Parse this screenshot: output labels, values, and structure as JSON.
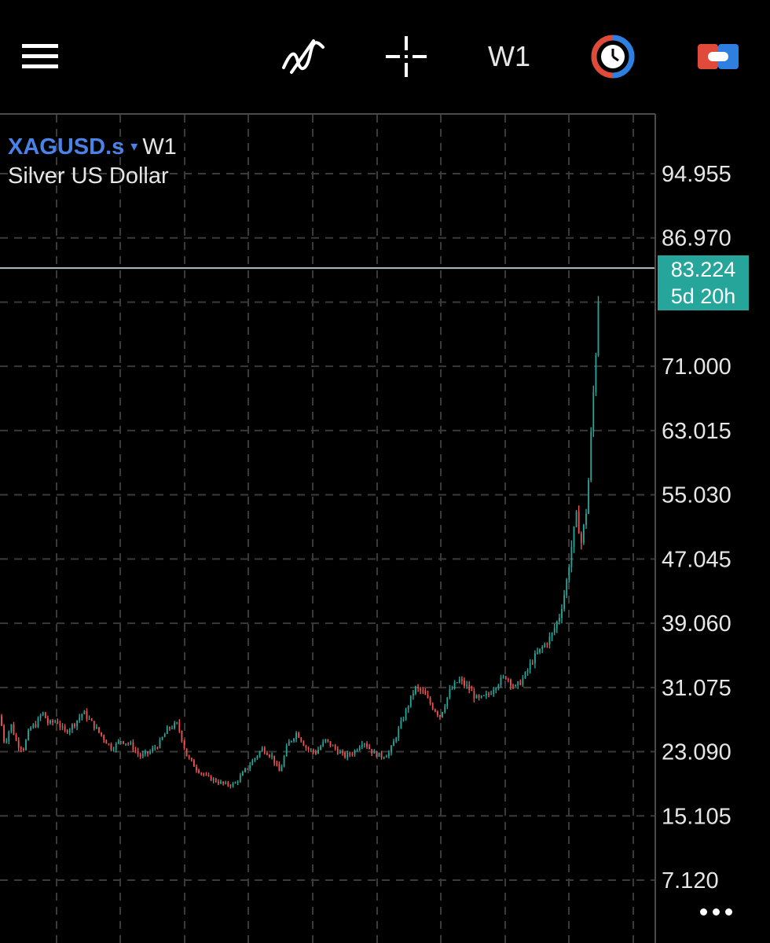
{
  "toolbar": {
    "timeframe": "W1",
    "icons": [
      "menu-icon",
      "indicators-icon",
      "crosshair-icon",
      "timeframe",
      "session-clock-icon",
      "trade-icon"
    ],
    "colors": {
      "clock_red": "#e04a3a",
      "clock_blue": "#2f7fe0",
      "trade_red": "#e04a3a",
      "trade_blue": "#2f7fe0"
    }
  },
  "symbol": {
    "name": "XAGUSD.s",
    "caret": "▾",
    "timeframe": "W1",
    "description": "Silver US Dollar"
  },
  "price_badge": {
    "price": "83.224",
    "countdown": "5d 20h",
    "color": "#26a69a"
  },
  "chart_data": {
    "type": "candlestick",
    "symbol": "XAGUSD.s",
    "timeframe": "W1",
    "y_ticks": [
      "94.955",
      "86.970",
      "71.000",
      "63.015",
      "55.030",
      "47.045",
      "39.060",
      "31.075",
      "23.090",
      "15.105",
      "7.120"
    ],
    "y_tick_values": [
      94.955,
      86.97,
      71.0,
      63.015,
      55.03,
      47.045,
      39.06,
      31.075,
      23.09,
      15.105,
      7.12
    ],
    "current_price": 83.224,
    "grid": true,
    "colors": {
      "up": "#26a69a",
      "down": "#ef5350",
      "grid": "#3a3a3a",
      "price_line": "#b0bec5"
    },
    "approx_path": [
      [
        0,
        27.5
      ],
      [
        6,
        24.0
      ],
      [
        14,
        26.5
      ],
      [
        22,
        24.0
      ],
      [
        30,
        23.5
      ],
      [
        38,
        26.0
      ],
      [
        46,
        26.5
      ],
      [
        54,
        28.0
      ],
      [
        62,
        26.5
      ],
      [
        72,
        27.0
      ],
      [
        82,
        25.5
      ],
      [
        94,
        26.5
      ],
      [
        106,
        28.0
      ],
      [
        118,
        26.5
      ],
      [
        130,
        25.0
      ],
      [
        142,
        23.5
      ],
      [
        154,
        24.5
      ],
      [
        166,
        24.0
      ],
      [
        178,
        22.5
      ],
      [
        190,
        23.0
      ],
      [
        202,
        24.0
      ],
      [
        214,
        26.0
      ],
      [
        226,
        26.5
      ],
      [
        238,
        22.5
      ],
      [
        250,
        21.0
      ],
      [
        262,
        20.0
      ],
      [
        274,
        19.5
      ],
      [
        286,
        19.0
      ],
      [
        298,
        19.0
      ],
      [
        310,
        20.5
      ],
      [
        322,
        22.0
      ],
      [
        334,
        23.5
      ],
      [
        346,
        22.5
      ],
      [
        356,
        20.5
      ],
      [
        366,
        24.0
      ],
      [
        378,
        25.5
      ],
      [
        390,
        23.5
      ],
      [
        402,
        23.0
      ],
      [
        414,
        24.5
      ],
      [
        426,
        23.5
      ],
      [
        438,
        22.5
      ],
      [
        450,
        23.0
      ],
      [
        462,
        24.5
      ],
      [
        474,
        23.0
      ],
      [
        486,
        22.5
      ],
      [
        496,
        23.0
      ],
      [
        506,
        25.5
      ],
      [
        516,
        28.0
      ],
      [
        528,
        31.0
      ],
      [
        538,
        30.5
      ],
      [
        548,
        29.0
      ],
      [
        560,
        27.5
      ],
      [
        572,
        30.5
      ],
      [
        584,
        32.0
      ],
      [
        596,
        31.0
      ],
      [
        608,
        29.5
      ],
      [
        620,
        30.0
      ],
      [
        632,
        31.5
      ],
      [
        644,
        32.5
      ],
      [
        656,
        31.0
      ],
      [
        668,
        32.5
      ],
      [
        678,
        34.5
      ],
      [
        690,
        36.0
      ],
      [
        702,
        37.5
      ],
      [
        712,
        40.0
      ],
      [
        720,
        43.5
      ],
      [
        728,
        49.0
      ],
      [
        734,
        52.5
      ],
      [
        740,
        49.0
      ],
      [
        746,
        53.0
      ],
      [
        750,
        58.0
      ],
      [
        754,
        66.0
      ],
      [
        758,
        71.5
      ],
      [
        761,
        78.0
      ],
      [
        764,
        83.2
      ]
    ]
  },
  "more_button": {
    "icon": "more-icon"
  }
}
